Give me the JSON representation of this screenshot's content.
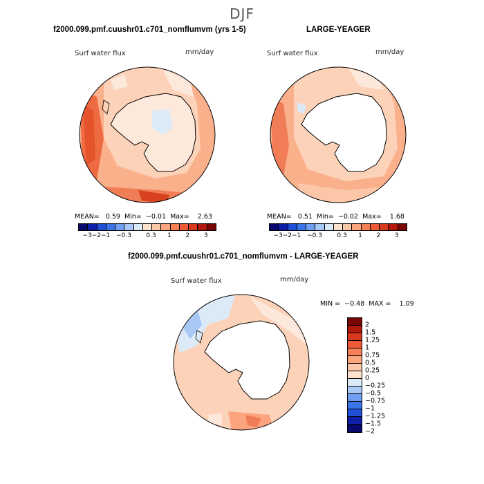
{
  "season": "DJF",
  "panels": [
    {
      "title": "f2000.099.pmf.cuushr01.c701_nomflumvm (yrs 1-5)",
      "variable": "Surf water flux",
      "units": "mm/day",
      "mean_label": "MEAN=",
      "mean": "0.59",
      "min_label": "Min=",
      "min": "−0.01",
      "max_label": "Max=",
      "max": "2.63"
    },
    {
      "title": "LARGE-YEAGER",
      "variable": "Surf water flux",
      "units": "mm/day",
      "mean_label": "MEAN=",
      "mean": "0.51",
      "min_label": "Min=",
      "min": "−0.02",
      "max_label": "Max=",
      "max": "1.68"
    },
    {
      "title": "f2000.099.pmf.cuushr01.c701_nomflumvm - LARGE-YEAGER",
      "variable": "Surf water flux",
      "units": "mm/day",
      "minmax_text": "MIN =  −0.48  MAX =    1.09"
    }
  ],
  "colorbar_abs": {
    "colors": [
      "#08086e",
      "#0d1ea8",
      "#1f4fd6",
      "#3b75e8",
      "#6f9ff0",
      "#a9c8f5",
      "#dceaf8",
      "#fde2d0",
      "#fcc6a8",
      "#fba47e",
      "#f77f55",
      "#ee5a35",
      "#d83a1e",
      "#b3180c",
      "#7a0505"
    ],
    "ticks": [
      "−3",
      "−2",
      "−1",
      "−0.3",
      "0.3",
      "1",
      "2",
      "3"
    ]
  },
  "colorbar_diff": {
    "colors": [
      "#7a0505",
      "#b3180c",
      "#d83a1e",
      "#ee5a35",
      "#f77f55",
      "#fba47e",
      "#fcc6a8",
      "#fde2d0",
      "#dceaf8",
      "#a9c8f5",
      "#6f9ff0",
      "#3b75e8",
      "#1f4fd6",
      "#0d1ea8",
      "#08086e"
    ],
    "ticks": [
      "2",
      "1.5",
      "1.25",
      "1",
      "0.75",
      "0.5",
      "0.25",
      "0",
      "−0.25",
      "−0.5",
      "−0.75",
      "−1",
      "−1.25",
      "−1.5",
      "−2"
    ]
  }
}
